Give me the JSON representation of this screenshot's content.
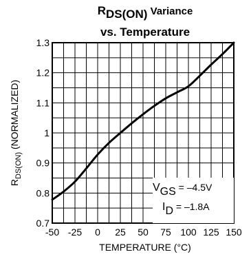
{
  "chart_data": {
    "type": "line",
    "title": {
      "main": "R",
      "main_sub": "DS(ON)",
      "main_rest": " Variance",
      "line2": "vs. Temperature"
    },
    "xlabel": "TEMPERATURE (°C)",
    "ylabel": {
      "pre": "R",
      "sub": "DS(ON)",
      "post": " (NORMALIZED)"
    },
    "xlim": [
      -50,
      150
    ],
    "ylim": [
      0.7,
      1.3
    ],
    "grid": true,
    "x_ticks": [
      -50,
      -25,
      0,
      25,
      50,
      75,
      100,
      125,
      150
    ],
    "y_ticks": [
      0.7,
      0.8,
      0.9,
      1,
      1.1,
      1.2,
      1.3
    ],
    "x_tick_labels": [
      "-50",
      "-25",
      "0",
      "25",
      "50",
      "75",
      "100",
      "125",
      "150"
    ],
    "y_tick_labels": [
      "0.7",
      "0.8",
      "0.9",
      "1",
      "1.1",
      "1.2",
      "1.3"
    ],
    "series": [
      {
        "x": [
          -50,
          -37.5,
          -25,
          -12.5,
          0,
          12.5,
          25,
          37.5,
          50,
          62.5,
          75,
          87.5,
          100,
          112.5,
          125,
          137.5,
          150
        ],
        "y": [
          0.778,
          0.805,
          0.838,
          0.882,
          0.928,
          0.967,
          1.0,
          1.032,
          1.062,
          1.09,
          1.115,
          1.135,
          1.155,
          1.19,
          1.227,
          1.262,
          1.3
        ]
      }
    ],
    "annotation": {
      "line1_pre": "V",
      "line1_sub": "GS",
      "line1_post": " = –4.5V",
      "line2_pre": "I",
      "line2_sub": "D",
      "line2_post": " = –1.8A"
    }
  }
}
